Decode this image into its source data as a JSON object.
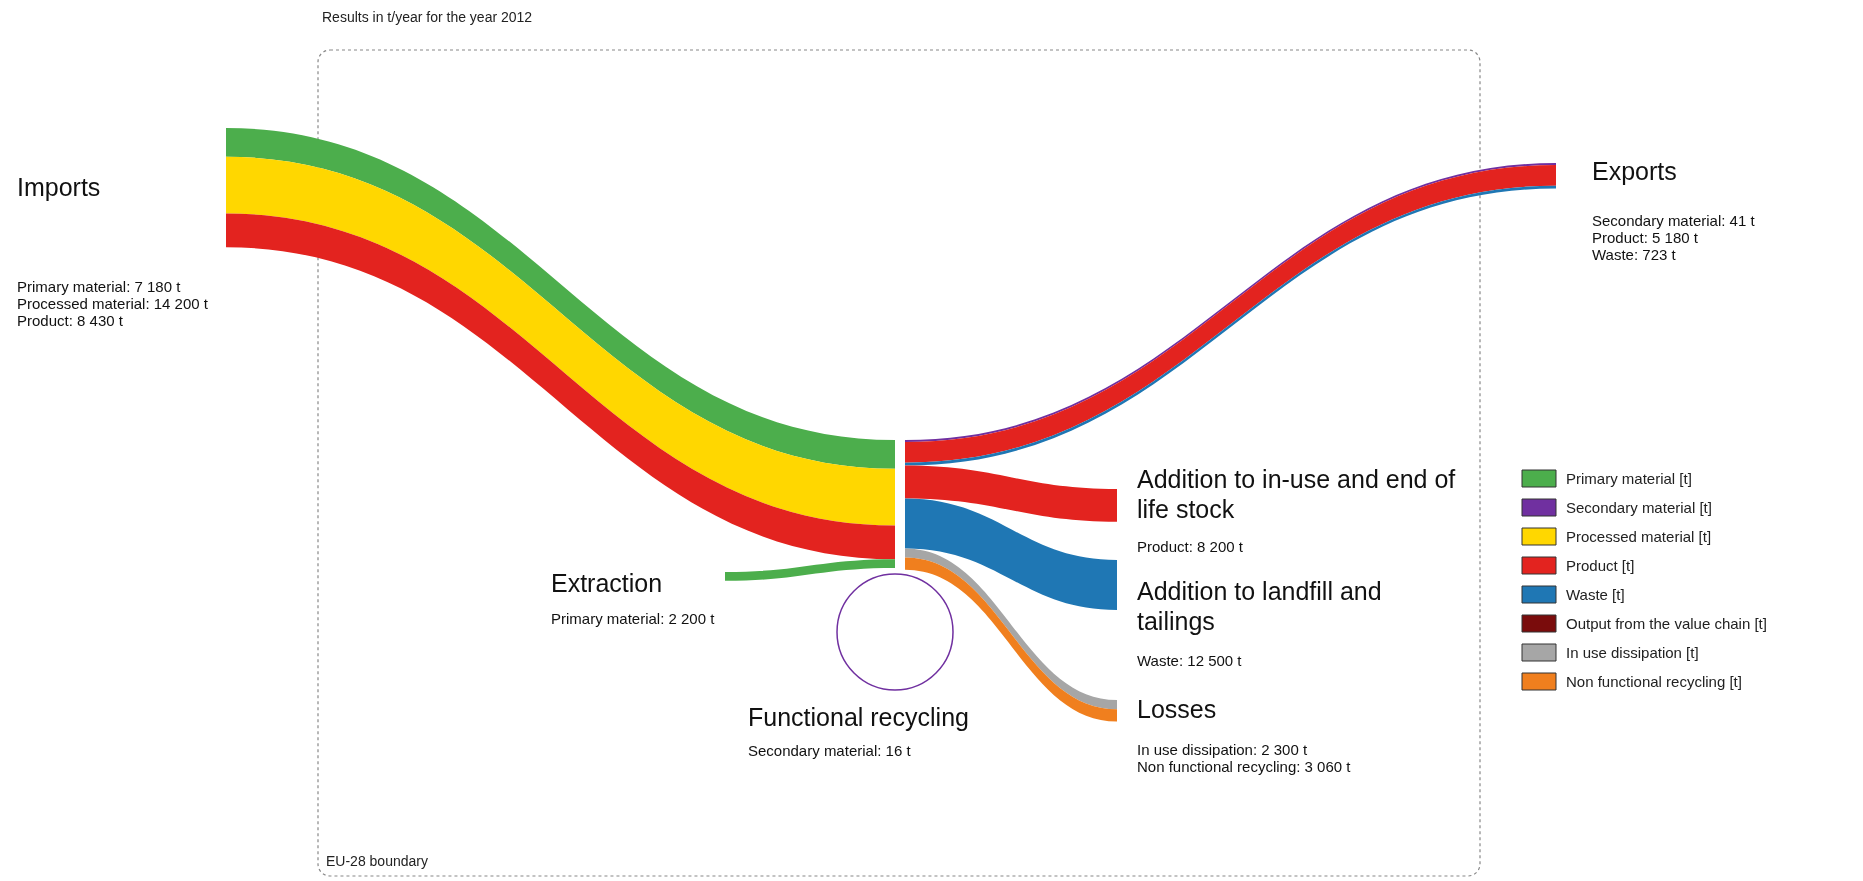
{
  "chart_data": {
    "type": "other",
    "title": "Results in t/year for the year 2012",
    "annotations": [
      "EU-28 boundary"
    ],
    "legend": "right",
    "categories": [
      "Imports",
      "Exports",
      "Addition to in-use and end of life stock",
      "Addition to landfill and tailings",
      "Extraction",
      "Functional recycling",
      "Losses"
    ],
    "series": [
      {
        "name": "Primary material [t]",
        "color": "#4cae4c",
        "values": [
          7180,
          null,
          null,
          null,
          2200,
          null,
          null
        ],
        "value_labels": [
          "Primary material: 7 180 t",
          null,
          null,
          null,
          "Primary material: 2 200 t",
          null,
          null
        ]
      },
      {
        "name": "Secondary material [t]",
        "color": "#7030a0",
        "values": [
          null,
          41,
          null,
          null,
          null,
          16,
          null
        ],
        "value_labels": [
          null,
          "Secondary material: 41 t",
          null,
          null,
          null,
          "Secondary material: 16 t",
          null
        ]
      },
      {
        "name": "Processed material [t]",
        "color": "#ffd700",
        "values": [
          14200,
          null,
          null,
          null,
          null,
          null,
          null
        ],
        "value_labels": [
          "Processed material: 14 200 t",
          null,
          null,
          null,
          null,
          null,
          null
        ]
      },
      {
        "name": "Product [t]",
        "color": "#e3231f",
        "values": [
          8430,
          5180,
          8200,
          null,
          null,
          null,
          null
        ],
        "value_labels": [
          "Product: 8 430 t",
          "Product: 5 180 t",
          "Product: 8 200 t",
          null,
          null,
          null,
          null
        ]
      },
      {
        "name": "Waste [t]",
        "color": "#1f77b4",
        "values": [
          null,
          723,
          null,
          12500,
          null,
          null,
          null
        ],
        "value_labels": [
          null,
          "Waste: 723 t",
          null,
          "Waste: 12 500 t",
          null,
          null,
          null
        ]
      },
      {
        "name": "Output from the value chain [t]",
        "color": "#7a0c0c",
        "values": [
          null,
          null,
          null,
          null,
          null,
          null,
          null
        ],
        "value_labels": [
          null,
          null,
          null,
          null,
          null,
          null,
          null
        ]
      },
      {
        "name": "In use dissipation [t]",
        "color": "#a6a6a6",
        "values": [
          null,
          null,
          null,
          null,
          null,
          null,
          2300
        ],
        "value_labels": [
          null,
          null,
          null,
          null,
          null,
          null,
          "In use dissipation: 2 300 t"
        ]
      },
      {
        "name": "Non functional recycling [t]",
        "color": "#f07f1e",
        "values": [
          null,
          null,
          null,
          null,
          null,
          null,
          3060
        ],
        "value_labels": [
          null,
          null,
          null,
          null,
          null,
          null,
          "Non functional recycling: 3 060 t"
        ]
      }
    ]
  }
}
